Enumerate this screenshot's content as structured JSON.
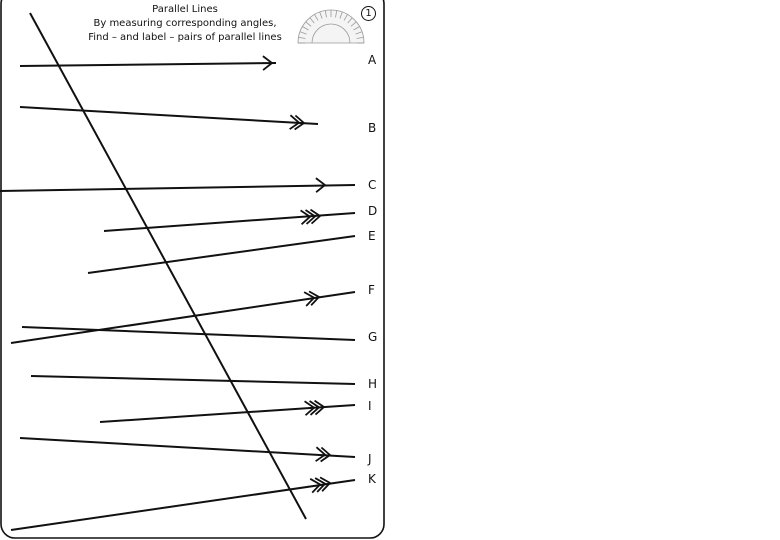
{
  "header": {
    "title": "Parallel Lines",
    "line1": "By measuring corresponding angles,",
    "line2": "Find – and label – pairs of parallel lines",
    "sheet_number": "1"
  },
  "lines": [
    {
      "label": "A",
      "arrows": 1
    },
    {
      "label": "B",
      "arrows": 2
    },
    {
      "label": "C",
      "arrows": 1
    },
    {
      "label": "D",
      "arrows": 3
    },
    {
      "label": "E",
      "arrows": 0
    },
    {
      "label": "F",
      "arrows": 2
    },
    {
      "label": "G",
      "arrows": 0
    },
    {
      "label": "H",
      "arrows": 0
    },
    {
      "label": "I",
      "arrows": 3
    },
    {
      "label": "J",
      "arrows": 2
    },
    {
      "label": "K",
      "arrows": 3
    }
  ],
  "protractor_icon": "protractor-icon"
}
